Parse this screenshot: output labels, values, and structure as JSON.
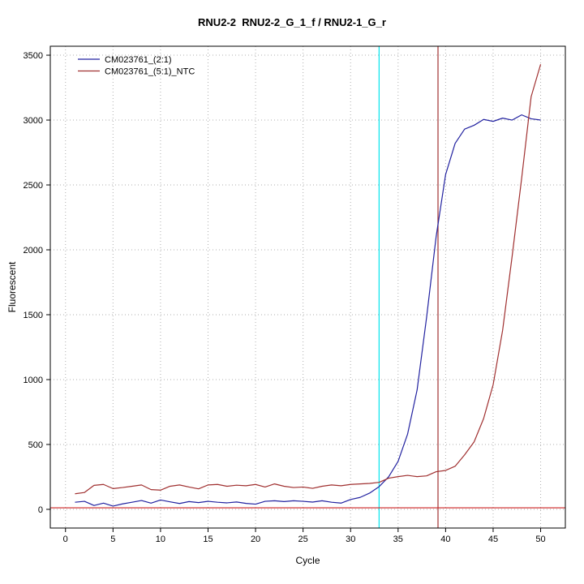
{
  "chart_data": {
    "type": "line",
    "title": "RNU2-2  RNU2-2_G_1_f / RNU2-1_G_r",
    "xlabel": "Cycle",
    "ylabel": "Fluorescent",
    "x_start": 1,
    "xticks": [
      0,
      5,
      10,
      15,
      20,
      25,
      30,
      35,
      40,
      45,
      50
    ],
    "yticks": [
      0,
      500,
      1000,
      1500,
      2000,
      2500,
      3000,
      3500
    ],
    "xlim": [
      -1.6,
      52.6
    ],
    "ylim": [
      -144,
      3569
    ],
    "grid": true,
    "grid_color": "#AFAFAF",
    "legend_position": "top-left",
    "series": [
      {
        "name": "CM023761_(2:1)",
        "color": "#2222A0",
        "values": [
          55,
          62,
          30,
          48,
          25,
          42,
          55,
          68,
          48,
          72,
          58,
          45,
          60,
          52,
          62,
          55,
          50,
          57,
          46,
          40,
          62,
          66,
          60,
          66,
          62,
          56,
          66,
          55,
          48,
          76,
          92,
          125,
          175,
          250,
          370,
          580,
          920,
          1480,
          2100,
          2580,
          2820,
          2930,
          2960,
          3005,
          2990,
          3015,
          3000,
          3040,
          3010,
          3000
        ]
      },
      {
        "name": "CM023761_(5:1)_NTC",
        "color": "#A03030",
        "values": [
          120,
          130,
          185,
          192,
          160,
          168,
          178,
          188,
          152,
          148,
          178,
          188,
          172,
          158,
          188,
          192,
          178,
          186,
          182,
          192,
          172,
          196,
          178,
          168,
          172,
          162,
          178,
          188,
          182,
          192,
          196,
          200,
          208,
          240,
          252,
          262,
          252,
          258,
          290,
          300,
          332,
          420,
          520,
          700,
          960,
          1380,
          1950,
          2550,
          3180,
          3430
        ]
      }
    ],
    "vlines": [
      {
        "x": 33,
        "color": "#00E5EE",
        "name": "ct-line-cyan"
      },
      {
        "x": 39.2,
        "color": "#A03030",
        "name": "ct-line-dark-red"
      }
    ],
    "hlines": [
      {
        "y": 12,
        "color": "#CC2222",
        "name": "threshold-line"
      }
    ]
  }
}
